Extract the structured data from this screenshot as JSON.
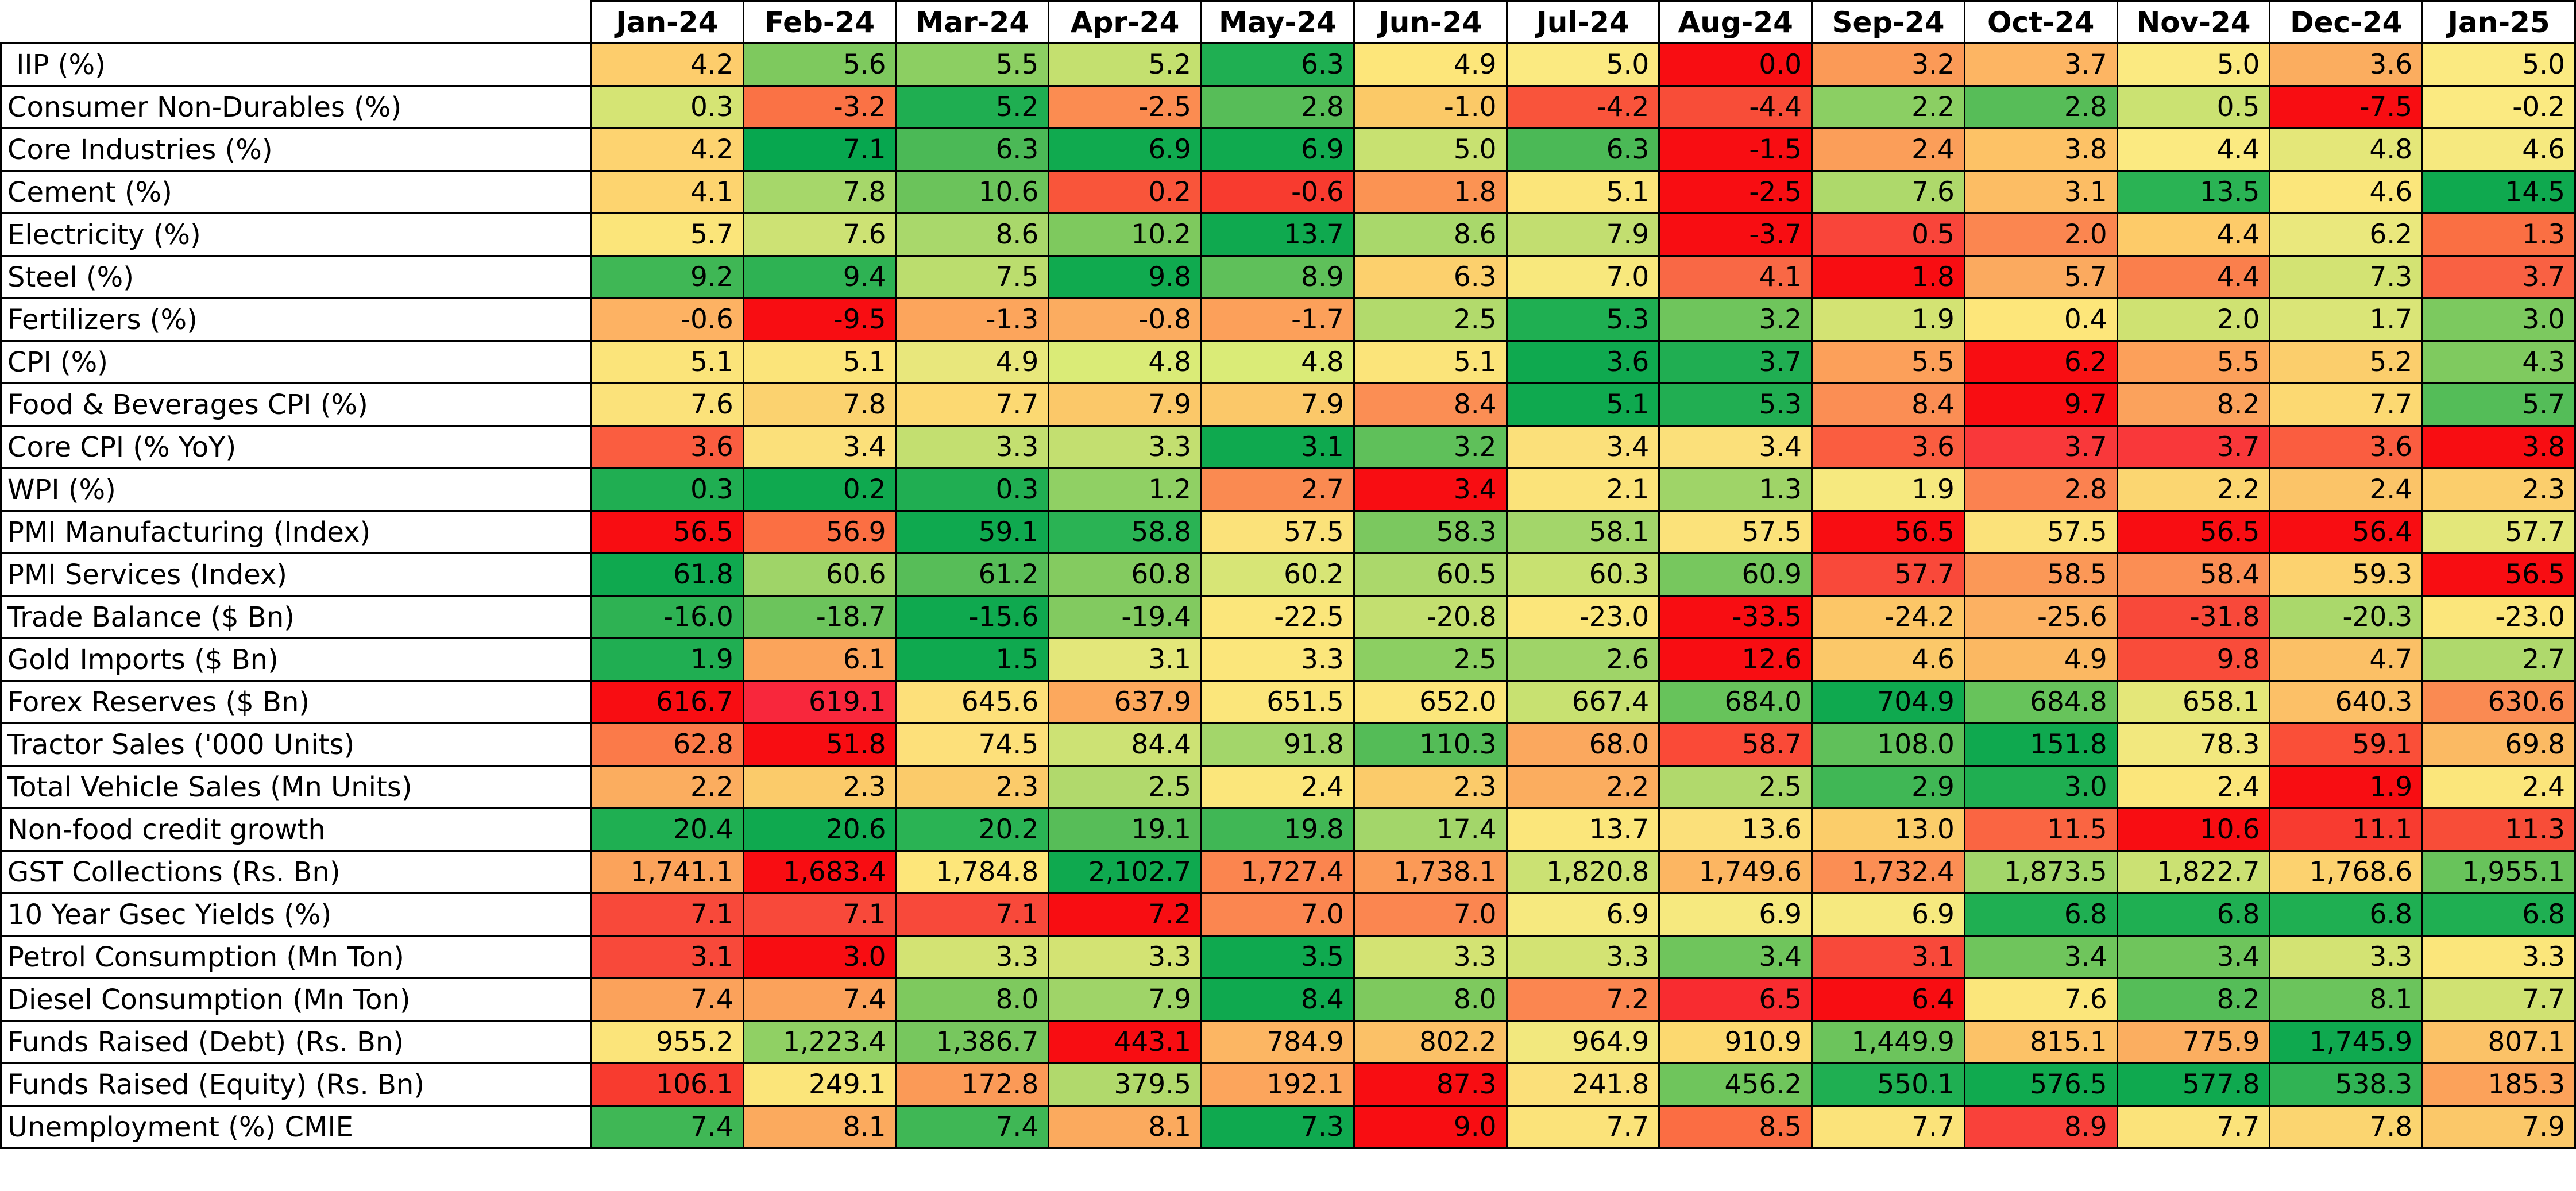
{
  "table": {
    "months": [
      "Jan-24",
      "Feb-24",
      "Mar-24",
      "Apr-24",
      "May-24",
      "Jun-24",
      "Jul-24",
      "Aug-24",
      "Sep-24",
      "Oct-24",
      "Nov-24",
      "Dec-24",
      "Jan-25"
    ],
    "rows": [
      {
        "label": " IIP (%)",
        "values": [
          "4.2",
          "5.6",
          "5.5",
          "5.2",
          "6.3",
          "4.9",
          "5.0",
          "0.0",
          "3.2",
          "3.7",
          "5.0",
          "3.6",
          "5.0"
        ],
        "colors": [
          "#fdcd6c",
          "#7ec95e",
          "#8ccf62",
          "#c4e06f",
          "#1faf52",
          "#fde67a",
          "#fbea81",
          "#f80d12",
          "#fb9a57",
          "#fdb563",
          "#fbea81",
          "#fbad5f",
          "#fbea81"
        ]
      },
      {
        "label": "Consumer Non-Durables (%)",
        "values": [
          "0.3",
          "-3.2",
          "5.2",
          "-2.5",
          "2.8",
          "-1.0",
          "-4.2",
          "-4.4",
          "2.2",
          "2.8",
          "0.5",
          "-7.5",
          "-0.2"
        ],
        "colors": [
          "#d5e474",
          "#fa7245",
          "#1fae51",
          "#fb8c51",
          "#57bd58",
          "#fbc967",
          "#f9543b",
          "#f84d38",
          "#8bcf63",
          "#57bd58",
          "#cbe272",
          "#f80d12",
          "#fbea81"
        ]
      },
      {
        "label": "Core Industries (%)",
        "values": [
          "4.2",
          "7.1",
          "6.3",
          "6.9",
          "6.9",
          "5.0",
          "6.3",
          "-1.5",
          "2.4",
          "3.8",
          "4.4",
          "4.8",
          "4.6"
        ],
        "colors": [
          "#fdd370",
          "#07a74f",
          "#4bb956",
          "#10aa4f",
          "#10aa4f",
          "#c8e171",
          "#4bb956",
          "#f80d12",
          "#fb9e59",
          "#fdc266",
          "#fbea81",
          "#e4e779",
          "#f6e97f"
        ]
      },
      {
        "label": "Cement (%)",
        "values": [
          "4.1",
          "7.8",
          "10.6",
          "0.2",
          "-0.6",
          "1.8",
          "5.1",
          "-2.5",
          "7.6",
          "3.1",
          "13.5",
          "4.6",
          "14.5"
        ],
        "colors": [
          "#fdd46f",
          "#a6d76a",
          "#6bc35b",
          "#f9553a",
          "#f83b2f",
          "#fb9353",
          "#fbe57a",
          "#f80d12",
          "#aed96b",
          "#fcbd64",
          "#2ab354",
          "#fbe67b",
          "#0fa94f"
        ]
      },
      {
        "label": "Electricity (%)",
        "values": [
          "5.7",
          "7.6",
          "8.6",
          "10.2",
          "13.7",
          "8.6",
          "7.9",
          "-3.7",
          "0.5",
          "2.0",
          "4.4",
          "6.2",
          "1.3"
        ],
        "colors": [
          "#fbe57a",
          "#cde274",
          "#a9d86b",
          "#7ec95e",
          "#0fa94f",
          "#a9d86b",
          "#c2de70",
          "#f80d12",
          "#f9453a",
          "#fb8650",
          "#fdcb69",
          "#eae87d",
          "#fa6f43"
        ]
      },
      {
        "label": "Steel (%)",
        "values": [
          "9.2",
          "9.4",
          "7.5",
          "9.8",
          "8.9",
          "6.3",
          "7.0",
          "4.1",
          "1.8",
          "5.7",
          "4.4",
          "7.3",
          "3.7"
        ],
        "colors": [
          "#3fb755",
          "#2eb253",
          "#bbdd6e",
          "#10aa4f",
          "#5fc05a",
          "#fcd06d",
          "#f8e87d",
          "#f96845",
          "#f80d12",
          "#fbaa5f",
          "#fa7f4c",
          "#d3e373",
          "#f96143"
        ]
      },
      {
        "label": "Fertilizers (%)",
        "values": [
          "-0.6",
          "-9.5",
          "-1.3",
          "-0.8",
          "-1.7",
          "2.5",
          "5.3",
          "3.2",
          "1.9",
          "0.4",
          "2.0",
          "1.7",
          "3.0"
        ],
        "colors": [
          "#fdb263",
          "#f80d12",
          "#fca55c",
          "#fbac60",
          "#fca05a",
          "#b2da6c",
          "#1faf52",
          "#6fc55c",
          "#d3e373",
          "#fde67a",
          "#cfe272",
          "#dae577",
          "#7cc95f"
        ]
      },
      {
        "label": "CPI (%)",
        "values": [
          "5.1",
          "5.1",
          "4.9",
          "4.8",
          "4.8",
          "5.1",
          "3.6",
          "3.7",
          "5.5",
          "6.2",
          "5.5",
          "5.2",
          "4.3"
        ],
        "colors": [
          "#fbe47a",
          "#fbe47a",
          "#e8e77c",
          "#daeb77",
          "#daeb77",
          "#fbe47a",
          "#0fa94f",
          "#20ae52",
          "#fca05a",
          "#f80d12",
          "#fca05a",
          "#fbce6c",
          "#7fca5f"
        ]
      },
      {
        "label": "Food & Beverages CPI (%)",
        "values": [
          "7.6",
          "7.8",
          "7.7",
          "7.9",
          "7.9",
          "8.4",
          "5.1",
          "5.3",
          "8.4",
          "9.7",
          "8.2",
          "7.7",
          "5.7"
        ],
        "colors": [
          "#fbe27a",
          "#fbd26f",
          "#fcd972",
          "#fbc869",
          "#fbc869",
          "#fb8e54",
          "#0fa94f",
          "#21ae52",
          "#fb8e54",
          "#f80d12",
          "#fba25c",
          "#fcd972",
          "#54bd58"
        ]
      },
      {
        "label": "Core CPI (% YoY)",
        "values": [
          "3.6",
          "3.4",
          "3.3",
          "3.3",
          "3.1",
          "3.2",
          "3.4",
          "3.4",
          "3.6",
          "3.7",
          "3.7",
          "3.6",
          "3.8"
        ],
        "colors": [
          "#fa5d40",
          "#fbe07a",
          "#c3df70",
          "#c3df70",
          "#0fa94f",
          "#5fc05a",
          "#fbe07a",
          "#fbe07a",
          "#fa5d40",
          "#f9383a",
          "#f9383a",
          "#fa5d40",
          "#f80d12"
        ]
      },
      {
        "label": "WPI (%)",
        "values": [
          "0.3",
          "0.2",
          "0.3",
          "1.2",
          "2.7",
          "3.4",
          "2.1",
          "1.3",
          "1.9",
          "2.8",
          "2.2",
          "2.4",
          "2.3"
        ],
        "colors": [
          "#20ae52",
          "#0fa94f",
          "#20ae52",
          "#90d064",
          "#fa8a51",
          "#f80d12",
          "#fbe37a",
          "#9fd468",
          "#f6e97f",
          "#fb8250",
          "#fbd671",
          "#fbc468",
          "#fbce6c"
        ]
      },
      {
        "label": "PMI Manufacturing (Index)",
        "values": [
          "56.5",
          "56.9",
          "59.1",
          "58.8",
          "57.5",
          "58.3",
          "58.1",
          "57.5",
          "56.5",
          "57.5",
          "56.5",
          "56.4",
          "57.7"
        ],
        "colors": [
          "#f80d12",
          "#fb6f43",
          "#0fa94f",
          "#2ab354",
          "#fbe27a",
          "#7bc85f",
          "#a3d66a",
          "#fbe27a",
          "#f80d12",
          "#fbe27a",
          "#f80d12",
          "#f80d12",
          "#e3e77a"
        ]
      },
      {
        "label": "PMI Services (Index)",
        "values": [
          "61.8",
          "60.6",
          "61.2",
          "60.8",
          "60.2",
          "60.5",
          "60.3",
          "60.9",
          "57.7",
          "58.5",
          "58.4",
          "59.3",
          "56.5"
        ],
        "colors": [
          "#0fa94f",
          "#9fd468",
          "#57bd58",
          "#84cb60",
          "#d7e576",
          "#abd86b",
          "#c8e171",
          "#77c75e",
          "#f9493a",
          "#fb9857",
          "#fb8e54",
          "#fcd26f",
          "#f80d12"
        ]
      },
      {
        "label": "Trade Balance ($ Bn)",
        "values": [
          "-16.0",
          "-18.7",
          "-15.6",
          "-19.4",
          "-22.5",
          "-20.8",
          "-23.0",
          "-33.5",
          "-24.2",
          "-25.6",
          "-31.8",
          "-20.3",
          "-23.0"
        ],
        "colors": [
          "#2eb253",
          "#6cc45c",
          "#0fa94f",
          "#82ca60",
          "#fbe67b",
          "#c3df70",
          "#fbe67b",
          "#f80d12",
          "#fcc667",
          "#fcb162",
          "#f8493a",
          "#aad86b",
          "#fbe67b"
        ]
      },
      {
        "label": "Gold Imports ($ Bn)",
        "values": [
          "1.9",
          "6.1",
          "1.5",
          "3.1",
          "3.3",
          "2.5",
          "2.6",
          "12.6",
          "4.6",
          "4.9",
          "9.8",
          "4.7",
          "2.7"
        ],
        "colors": [
          "#20ae52",
          "#fba45b",
          "#0fa94f",
          "#e3e77a",
          "#fbe67b",
          "#8ccf62",
          "#9fd468",
          "#f80d12",
          "#fbc869",
          "#fbb862",
          "#f94c3a",
          "#fbc066",
          "#afd96c"
        ]
      },
      {
        "label": "Forex Reserves ($ Bn)",
        "values": [
          "616.7",
          "619.1",
          "645.6",
          "637.9",
          "651.5",
          "652.0",
          "667.4",
          "684.0",
          "704.9",
          "684.8",
          "658.1",
          "640.3",
          "630.6"
        ],
        "colors": [
          "#f80d12",
          "#f8273c",
          "#fde07a",
          "#fca85d",
          "#fbe67b",
          "#fbe67b",
          "#c8e171",
          "#67c35b",
          "#0fa94f",
          "#67c35b",
          "#e4e779",
          "#fcc067",
          "#fa8a52"
        ]
      },
      {
        "label": "Tractor Sales ('000 Units)",
        "values": [
          "62.8",
          "51.8",
          "74.5",
          "84.4",
          "91.8",
          "110.3",
          "68.0",
          "58.7",
          "108.0",
          "151.8",
          "78.3",
          "59.1",
          "69.8"
        ],
        "colors": [
          "#fb7a49",
          "#f80d12",
          "#fde07a",
          "#cde274",
          "#a3d66a",
          "#54bc57",
          "#fba85e",
          "#fa4a37",
          "#60c05a",
          "#0fa94f",
          "#f2e87e",
          "#fa4f38",
          "#fbba63"
        ]
      },
      {
        "label": "Total Vehicle Sales (Mn Units)",
        "values": [
          "2.2",
          "2.3",
          "2.3",
          "2.5",
          "2.4",
          "2.3",
          "2.2",
          "2.5",
          "2.9",
          "3.0",
          "2.4",
          "1.9",
          "2.4"
        ],
        "colors": [
          "#fbad5f",
          "#fbcb6a",
          "#fbcb6a",
          "#b1d96c",
          "#fbe67b",
          "#fbcb6a",
          "#fbad5f",
          "#b1d96c",
          "#40b755",
          "#1fae51",
          "#fbe67b",
          "#f80d12",
          "#fbe67b"
        ]
      },
      {
        "label": "Non-food credit growth",
        "values": [
          "20.4",
          "20.6",
          "20.2",
          "19.1",
          "19.8",
          "17.4",
          "13.7",
          "13.6",
          "13.0",
          "11.5",
          "10.6",
          "11.1",
          "11.3"
        ],
        "colors": [
          "#1faf52",
          "#0fa94f",
          "#2ab354",
          "#57bd58",
          "#40b755",
          "#a3d66a",
          "#fbe67b",
          "#fbe07a",
          "#fbcd6a",
          "#fa6542",
          "#f80d12",
          "#f83b30",
          "#f84d38"
        ]
      },
      {
        "label": "GST Collections (Rs. Bn)",
        "values": [
          "1,741.1",
          "1,683.4",
          "1,784.8",
          "2,102.7",
          "1,727.4",
          "1,738.1",
          "1,820.8",
          "1,749.6",
          "1,732.4",
          "1,873.5",
          "1,822.7",
          "1,768.6",
          "1,955.1"
        ],
        "colors": [
          "#fba35b",
          "#f80d12",
          "#fde67a",
          "#0fa94f",
          "#fb854f",
          "#fb9a57",
          "#cbe173",
          "#fcb662",
          "#fb8e54",
          "#a3d66a",
          "#cbe173",
          "#fcd26f",
          "#68c35b"
        ]
      },
      {
        "label": "10 Year Gsec Yields (%)",
        "values": [
          "7.1",
          "7.1",
          "7.1",
          "7.2",
          "7.0",
          "7.0",
          "6.9",
          "6.9",
          "6.9",
          "6.8",
          "6.8",
          "6.8",
          "6.8"
        ],
        "colors": [
          "#f8493a",
          "#f8493a",
          "#f8493a",
          "#f80d12",
          "#fb8650",
          "#fb8650",
          "#f6e97f",
          "#f6e97f",
          "#f6e97f",
          "#1faf52",
          "#1faf52",
          "#1faf52",
          "#1faf52"
        ]
      },
      {
        "label": "Petrol Consumption (Mn Ton)",
        "values": [
          "3.1",
          "3.0",
          "3.3",
          "3.3",
          "3.5",
          "3.3",
          "3.3",
          "3.4",
          "3.1",
          "3.4",
          "3.4",
          "3.3",
          "3.3"
        ],
        "colors": [
          "#f8493a",
          "#f80d12",
          "#d3e373",
          "#d3e373",
          "#0fa94f",
          "#d3e373",
          "#d3e373",
          "#6fc55c",
          "#f8493a",
          "#6fc55c",
          "#6fc55c",
          "#d3e373",
          "#fbe67b"
        ]
      },
      {
        "label": "Diesel Consumption (Mn Ton)",
        "values": [
          "7.4",
          "7.4",
          "8.0",
          "7.9",
          "8.4",
          "8.0",
          "7.2",
          "6.5",
          "6.4",
          "7.6",
          "8.2",
          "8.1",
          "7.7"
        ],
        "colors": [
          "#fba25b",
          "#fba25b",
          "#7ec95e",
          "#9fd468",
          "#0fa94f",
          "#7ec95e",
          "#fb8650",
          "#f82c30",
          "#f80d12",
          "#fbe67b",
          "#55bd58",
          "#6bc45c",
          "#d0e272"
        ]
      },
      {
        "label": "Funds Raised (Debt) (Rs. Bn)",
        "values": [
          "955.2",
          "1,223.4",
          "1,386.7",
          "443.1",
          "784.9",
          "802.2",
          "964.9",
          "910.9",
          "1,449.9",
          "815.1",
          "775.9",
          "1,745.9",
          "807.1"
        ],
        "colors": [
          "#fbe47a",
          "#90d064",
          "#77c75e",
          "#f80d12",
          "#fcb663",
          "#fbc167",
          "#f2e87e",
          "#fcd970",
          "#6cc45c",
          "#fcc267",
          "#fbae60",
          "#0fa94f",
          "#fbc267"
        ]
      },
      {
        "label": "Funds Raised (Equity) (Rs. Bn)",
        "values": [
          "106.1",
          "249.1",
          "172.8",
          "379.5",
          "192.1",
          "87.3",
          "241.8",
          "456.2",
          "550.1",
          "576.5",
          "577.8",
          "538.3",
          "185.3"
        ],
        "colors": [
          "#f83b2f",
          "#fbe57a",
          "#fb9a57",
          "#b1d96c",
          "#fca55c",
          "#f80d12",
          "#fbe07a",
          "#6fc55c",
          "#1faf52",
          "#10aa4f",
          "#0fa94f",
          "#30b354",
          "#fca25a"
        ]
      },
      {
        "label": "Unemployment (%) CMIE",
        "values": [
          "7.4",
          "8.1",
          "7.4",
          "8.1",
          "7.3",
          "9.0",
          "7.7",
          "8.5",
          "7.7",
          "8.9",
          "7.7",
          "7.8",
          "7.9"
        ],
        "colors": [
          "#3fb755",
          "#fbaa5e",
          "#3fb755",
          "#fbaa5e",
          "#0fa94f",
          "#f80d12",
          "#fbe37a",
          "#fb6d43",
          "#fbe37a",
          "#f9413a",
          "#fbe37a",
          "#fbd570",
          "#fbc869"
        ]
      }
    ]
  }
}
